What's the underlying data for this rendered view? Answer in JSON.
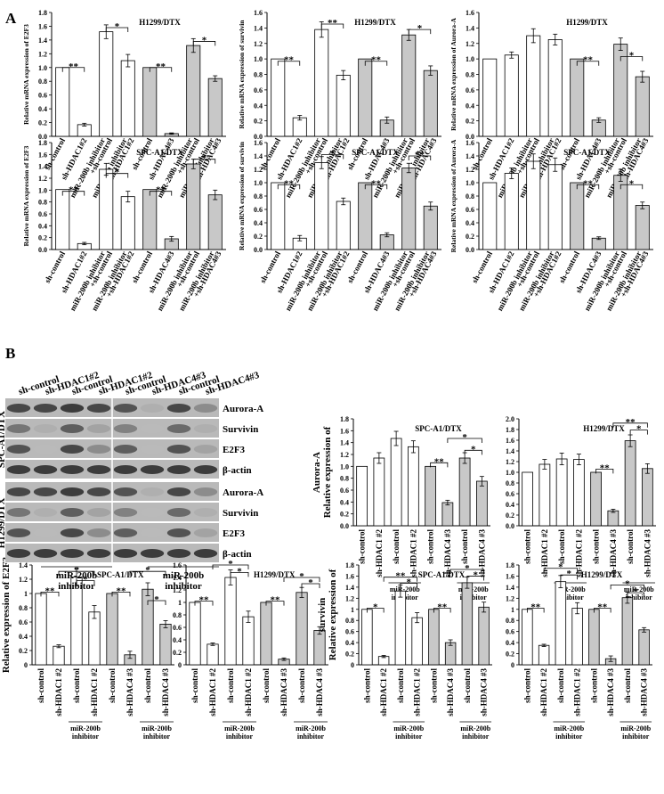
{
  "panel_a_label": "A",
  "panel_b_label": "B",
  "colors": {
    "white_bar": "#ffffff",
    "gray_bar": "#c8c8c8",
    "ink": "#000000"
  },
  "categories_a": [
    "sh-control",
    "sh-HDAC1#2",
    "miR-200b inhibitor\n+sh-control",
    "miR-200b inhibitor\n+sh-HDAC1#2",
    "sh-control",
    "sh-HDAC4#3",
    "miR-200b inhibitor\n+sh-control",
    "miR-200b inhibitor\n+sh-HDAC4#3"
  ],
  "categories_b": [
    "sh-control",
    "sh-HDAC1 #2",
    "sh-control",
    "sh-HDAC1 #2",
    "sh-control",
    "sh-HDAC4 #3",
    "sh-control",
    "sh-HDAC4 #3"
  ],
  "group_label_b": "miR-200b\ninhibitor",
  "western": {
    "lane_labels": [
      "sh-control",
      "sh-HDAC1#2",
      "sh-control",
      "sh-HDAC1#2",
      "sh-control",
      "sh-HDAC4#3",
      "sh-control",
      "sh-HDAC4#3"
    ],
    "cell_lines": [
      "SPC-A1/DTX",
      "H1299/DTX"
    ],
    "proteins_spc": [
      "Aurora-A",
      "Survivin",
      "E2F3",
      "β-actin"
    ],
    "proteins_h1299": [
      "Aurora-A",
      "Survivin",
      "E2F3",
      "β-actin"
    ],
    "group_labels": [
      "miR-200b\ninhibitor",
      "miR-200b\ninhibitor"
    ]
  },
  "chart_data": [
    {
      "type": "bar",
      "title": "H1299/DTX",
      "ylabel": "Relative mRNA expression of  E2F3",
      "ylim": [
        0,
        1.8
      ],
      "ticks": [
        "0.0",
        "0.2",
        "0.4",
        "0.6",
        "0.8",
        "1.0",
        "1.2",
        "1.4",
        "1.6",
        "1.8"
      ],
      "values": [
        1.0,
        0.17,
        1.52,
        1.1,
        1.0,
        0.04,
        1.32,
        0.84
      ],
      "errors": [
        0,
        0.02,
        0.1,
        0.09,
        0,
        0.01,
        0.1,
        0.04
      ],
      "sig": [
        {
          "a": 0,
          "b": 1,
          "label": "**",
          "level": 1.0
        },
        {
          "a": 2,
          "b": 3,
          "label": "*",
          "level": 1.58
        },
        {
          "a": 4,
          "b": 5,
          "label": "**",
          "level": 1.0
        },
        {
          "a": 6,
          "b": 7,
          "label": "*",
          "level": 1.38
        }
      ]
    },
    {
      "type": "bar",
      "title": "H1299/DTX",
      "ylabel": "Relative mRNA expression of  survivin",
      "ylim": [
        0,
        1.6
      ],
      "ticks": [
        "0.0",
        "0.2",
        "0.4",
        "0.6",
        "0.8",
        "1.0",
        "1.2",
        "1.4",
        "1.6"
      ],
      "values": [
        1.0,
        0.24,
        1.38,
        0.79,
        1.0,
        0.21,
        1.31,
        0.85
      ],
      "errors": [
        0,
        0.03,
        0.1,
        0.06,
        0,
        0.04,
        0.07,
        0.06
      ],
      "sig": [
        {
          "a": 0,
          "b": 1,
          "label": "**",
          "level": 0.97
        },
        {
          "a": 2,
          "b": 3,
          "label": "**",
          "level": 1.45
        },
        {
          "a": 4,
          "b": 5,
          "label": "**",
          "level": 0.97
        },
        {
          "a": 6,
          "b": 7,
          "label": "*",
          "level": 1.38
        }
      ]
    },
    {
      "type": "bar",
      "title": "H1299/DTX",
      "ylabel": "Relative mRNA expression of  Aurora-A",
      "ylim": [
        0,
        1.6
      ],
      "ticks": [
        "0.0",
        "0.2",
        "0.4",
        "0.6",
        "0.8",
        "1.0",
        "1.2",
        "1.4",
        "1.6"
      ],
      "values": [
        1.0,
        1.05,
        1.3,
        1.25,
        1.0,
        0.21,
        1.19,
        0.77
      ],
      "errors": [
        0,
        0.04,
        0.09,
        0.07,
        0,
        0.03,
        0.08,
        0.07
      ],
      "sig": [
        {
          "a": 4,
          "b": 5,
          "label": "**",
          "level": 0.97
        },
        {
          "a": 6,
          "b": 7,
          "label": "*",
          "level": 1.03
        }
      ]
    },
    {
      "type": "bar",
      "title": "SPC-A1/DTX",
      "ylabel": "Relative mRNA expression of  E2F3",
      "ylim": [
        0,
        1.8
      ],
      "ticks": [
        "0.0",
        "0.2",
        "0.4",
        "0.6",
        "0.8",
        "1.0",
        "1.2",
        "1.4",
        "1.6",
        "1.8"
      ],
      "values": [
        1.01,
        0.1,
        1.35,
        0.89,
        1.01,
        0.18,
        1.44,
        0.92
      ],
      "errors": [
        0,
        0.02,
        0.1,
        0.09,
        0,
        0.04,
        0.08,
        0.08
      ],
      "sig": [
        {
          "a": 0,
          "b": 1,
          "label": "**",
          "level": 0.98
        },
        {
          "a": 2,
          "b": 3,
          "label": "*",
          "level": 1.28
        },
        {
          "a": 4,
          "b": 5,
          "label": "**",
          "level": 0.98
        },
        {
          "a": 6,
          "b": 7,
          "label": "*",
          "level": 1.52
        }
      ]
    },
    {
      "type": "bar",
      "title": "SPC-A1/DTX",
      "ylabel": "Relative mRNA expression of  survivin",
      "ylim": [
        0,
        1.6
      ],
      "ticks": [
        "0.0",
        "0.2",
        "0.4",
        "0.6",
        "0.8",
        "1.0",
        "1.2",
        "1.4",
        "1.6"
      ],
      "values": [
        1.0,
        0.17,
        1.3,
        0.72,
        1.0,
        0.22,
        1.22,
        0.65
      ],
      "errors": [
        0,
        0.04,
        0.09,
        0.05,
        0,
        0.03,
        0.07,
        0.06
      ],
      "sig": [
        {
          "a": 0,
          "b": 1,
          "label": "**",
          "level": 0.97
        },
        {
          "a": 2,
          "b": 3,
          "label": "*",
          "level": 1.42
        },
        {
          "a": 4,
          "b": 5,
          "label": "**",
          "level": 0.97
        },
        {
          "a": 6,
          "b": 7,
          "label": "**",
          "level": 1.4
        }
      ]
    },
    {
      "type": "bar",
      "title": "SPC-A1/DTX",
      "ylabel": "Relative mRNA expression of  Aurora-A",
      "ylim": [
        0,
        1.6
      ],
      "ticks": [
        "0.0",
        "0.2",
        "0.4",
        "0.6",
        "0.8",
        "1.0",
        "1.2",
        "1.4",
        "1.6"
      ],
      "values": [
        1.0,
        1.14,
        1.32,
        1.27,
        1.0,
        0.17,
        1.11,
        0.66
      ],
      "errors": [
        0,
        0.08,
        0.11,
        0.1,
        0,
        0.02,
        0.09,
        0.05
      ],
      "sig": [
        {
          "a": 4,
          "b": 5,
          "label": "**",
          "level": 0.97
        },
        {
          "a": 6,
          "b": 7,
          "label": "*",
          "level": 0.97
        }
      ]
    },
    {
      "type": "bar",
      "title": "SPC-A1/DTX",
      "ylabel": "Relative expression of\nAurora-A",
      "ylim": [
        0,
        1.8
      ],
      "ticks": [
        "0.0",
        "0.2",
        "0.4",
        "0.6",
        "0.8",
        "1.0",
        "1.2",
        "1.4",
        "1.6",
        "1.8"
      ],
      "values": [
        1.0,
        1.14,
        1.47,
        1.33,
        1.0,
        0.39,
        1.14,
        0.75
      ],
      "errors": [
        0,
        0.09,
        0.12,
        0.1,
        0,
        0.04,
        0.09,
        0.08
      ],
      "sig": [
        {
          "a": 4,
          "b": 5,
          "label": "**",
          "level": 1.06
        },
        {
          "a": 6,
          "b": 7,
          "label": "*",
          "level": 1.27
        },
        {
          "a": 5,
          "b": 7,
          "label": "*",
          "level": 1.47
        }
      ]
    },
    {
      "type": "bar",
      "title": "H1299/DTX",
      "ylabel": "",
      "ylim": [
        0,
        2.0
      ],
      "ticks": [
        "0.0",
        "0.2",
        "0.4",
        "0.6",
        "0.8",
        "1.0",
        "1.2",
        "1.4",
        "1.6",
        "1.8",
        "2.0"
      ],
      "values": [
        1.0,
        1.15,
        1.25,
        1.24,
        1.0,
        0.28,
        1.59,
        1.07
      ],
      "errors": [
        0,
        0.09,
        0.11,
        0.1,
        0,
        0.03,
        0.11,
        0.09
      ],
      "sig": [
        {
          "a": 4,
          "b": 5,
          "label": "**",
          "level": 1.06
        },
        {
          "a": 6,
          "b": 7,
          "label": "*",
          "level": 1.79
        },
        {
          "a": 5,
          "b": 7,
          "label": "**",
          "level": 1.92
        }
      ]
    },
    {
      "type": "bar",
      "title": "SPC-A1/DTX",
      "ylabel": "Relative expression of  E2F3",
      "ylim": [
        0,
        1.4
      ],
      "ticks": [
        "0",
        "0.2",
        "0.4",
        "0.6",
        "0.8",
        "1",
        "1.2",
        "1.4"
      ],
      "values": [
        1.0,
        0.26,
        1.23,
        0.74,
        1.0,
        0.14,
        1.06,
        0.57
      ],
      "errors": [
        0,
        0.02,
        0.12,
        0.09,
        0,
        0.05,
        0.09,
        0.05
      ],
      "sig": [
        {
          "a": 0,
          "b": 1,
          "label": "**",
          "level": 1.02
        },
        {
          "a": 2,
          "b": 3,
          "label": "*",
          "level": 1.18
        },
        {
          "a": 1,
          "b": 3,
          "label": "*",
          "level": 1.31
        },
        {
          "a": 4,
          "b": 5,
          "label": "**",
          "level": 1.02
        },
        {
          "a": 6,
          "b": 7,
          "label": "*",
          "level": 0.9
        },
        {
          "a": 5,
          "b": 7,
          "label": "*",
          "level": 1.31
        }
      ]
    },
    {
      "type": "bar",
      "title": "H1299/DTX",
      "ylabel": "",
      "ylim": [
        0,
        1.6
      ],
      "ticks": [
        "0",
        "0.2",
        "0.4",
        "0.6",
        "0.8",
        "1",
        "1.2",
        "1.4",
        "1.6"
      ],
      "values": [
        1.0,
        0.33,
        1.4,
        0.77,
        1.0,
        0.09,
        1.16,
        0.55
      ],
      "errors": [
        0,
        0.02,
        0.12,
        0.09,
        0,
        0.02,
        0.08,
        0.06
      ],
      "sig": [
        {
          "a": 0,
          "b": 1,
          "label": "**",
          "level": 1.02
        },
        {
          "a": 2,
          "b": 3,
          "label": "*",
          "level": 1.48
        },
        {
          "a": 1,
          "b": 3,
          "label": "*",
          "level": 1.6
        },
        {
          "a": 4,
          "b": 5,
          "label": "**",
          "level": 1.02
        },
        {
          "a": 6,
          "b": 7,
          "label": "*",
          "level": 1.3
        },
        {
          "a": 5,
          "b": 7,
          "label": "*",
          "level": 1.4
        }
      ]
    },
    {
      "type": "bar",
      "title": "SPC-A1/DTX",
      "ylabel": "Relative expression of\nsurvivin",
      "ylim": [
        0,
        1.8
      ],
      "ticks": [
        "0",
        "0.2",
        "0.4",
        "0.6",
        "0.8",
        "1",
        "1.2",
        "1.4",
        "1.6",
        "1.8"
      ],
      "values": [
        1.0,
        0.15,
        1.33,
        0.85,
        1.0,
        0.4,
        1.48,
        1.04
      ],
      "errors": [
        0,
        0.02,
        0.11,
        0.09,
        0,
        0.05,
        0.1,
        0.09
      ],
      "sig": [
        {
          "a": 0,
          "b": 1,
          "label": "*",
          "level": 1.02
        },
        {
          "a": 2,
          "b": 3,
          "label": "*",
          "level": 1.47
        },
        {
          "a": 1,
          "b": 3,
          "label": "**",
          "level": 1.58
        },
        {
          "a": 4,
          "b": 5,
          "label": "**",
          "level": 1.02
        },
        {
          "a": 6,
          "b": 7,
          "label": "*",
          "level": 1.6
        },
        {
          "a": 5,
          "b": 7,
          "label": "*",
          "level": 1.72
        }
      ]
    },
    {
      "type": "bar",
      "title": "H1299/DTX",
      "ylabel": "",
      "ylim": [
        0,
        1.8
      ],
      "ticks": [
        "0",
        "0.2",
        "0.4",
        "0.6",
        "0.8",
        "1",
        "1.2",
        "1.4",
        "1.6",
        "1.8"
      ],
      "values": [
        1.0,
        0.35,
        1.5,
        1.02,
        1.0,
        0.11,
        1.21,
        0.63
      ],
      "errors": [
        0,
        0.02,
        0.11,
        0.1,
        0,
        0.05,
        0.1,
        0.04
      ],
      "sig": [
        {
          "a": 0,
          "b": 1,
          "label": "**",
          "level": 1.02
        },
        {
          "a": 2,
          "b": 3,
          "label": "*",
          "level": 1.62
        },
        {
          "a": 1,
          "b": 3,
          "label": "*",
          "level": 1.74
        },
        {
          "a": 4,
          "b": 5,
          "label": "**",
          "level": 1.02
        },
        {
          "a": 6,
          "b": 7,
          "label": "*",
          "level": 1.3
        },
        {
          "a": 5,
          "b": 7,
          "label": "*",
          "level": 1.44
        }
      ]
    }
  ]
}
